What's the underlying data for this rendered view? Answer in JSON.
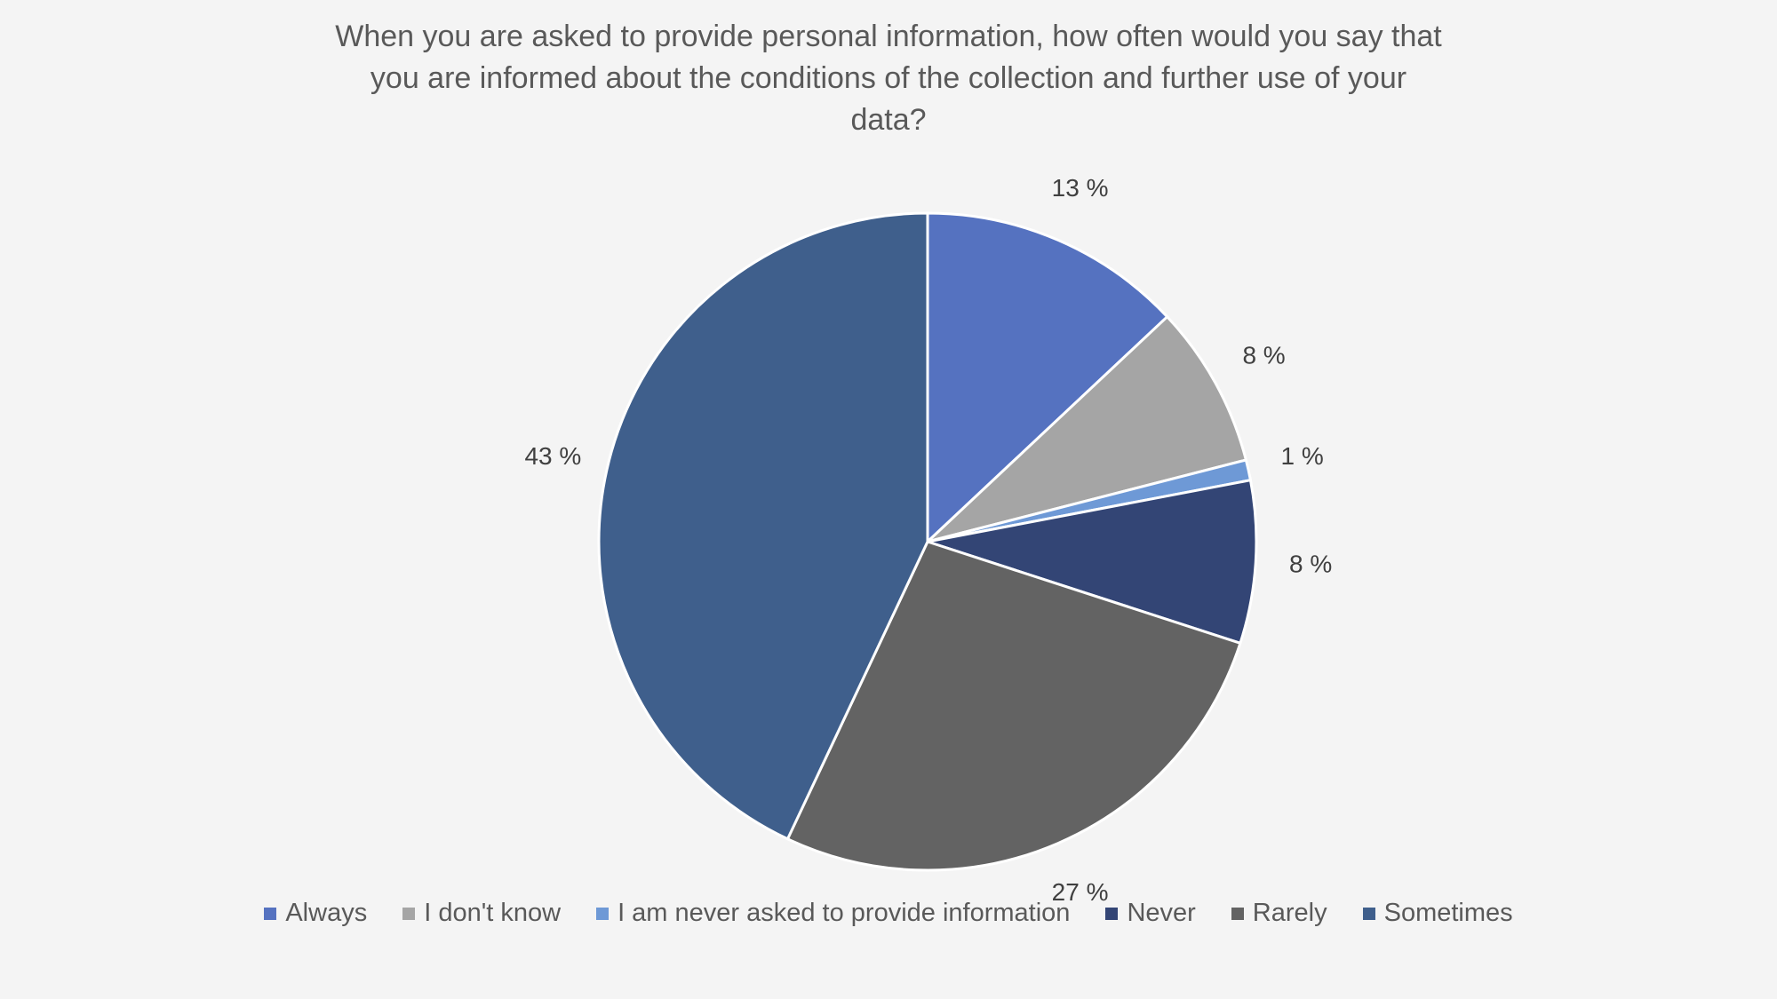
{
  "chart_data": {
    "type": "pie",
    "title": "When you are asked to provide personal information, how often would you say that you are informed about the conditions of the collection and further use of your data?",
    "unit": "%",
    "legend_position": "bottom",
    "slices": [
      {
        "label": "Always",
        "value": 13,
        "value_label": "13 %",
        "color": "#5572c0"
      },
      {
        "label": "I don't know",
        "value": 8,
        "value_label": "8 %",
        "color": "#a5a5a5"
      },
      {
        "label": "I am never asked to provide information",
        "value": 1,
        "value_label": "1 %",
        "color": "#6e99d6"
      },
      {
        "label": "Never",
        "value": 8,
        "value_label": "8 %",
        "color": "#334575"
      },
      {
        "label": "Rarely",
        "value": 27,
        "value_label": "27 %",
        "color": "#636363"
      },
      {
        "label": "Sometimes",
        "value": 43,
        "value_label": "43 %",
        "color": "#3f5f8c"
      }
    ]
  }
}
